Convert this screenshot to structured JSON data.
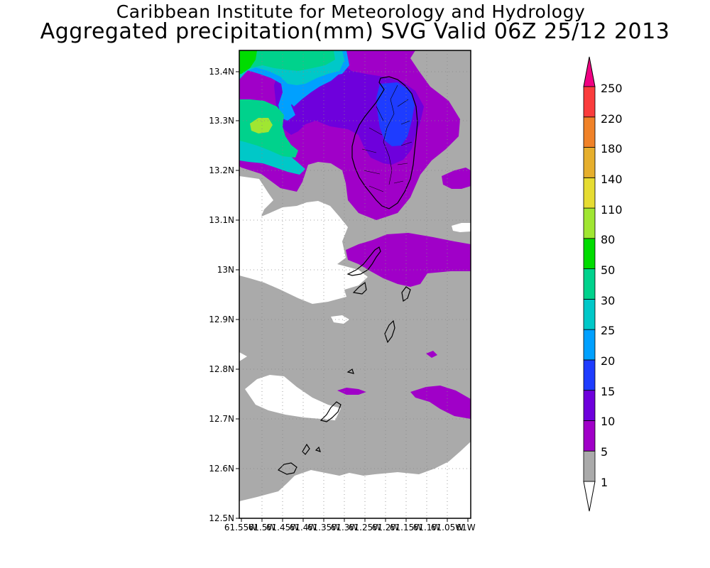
{
  "header": {
    "title": "Caribbean Institute for Meteorology and Hydrology",
    "subtitle": "Aggregated precipitation(mm) SVG Valid 06Z 25/12 2013"
  },
  "map": {
    "lat_labels": [
      "13.4N",
      "13.3N",
      "13.2N",
      "13.1N",
      "13N",
      "12.9N",
      "12.8N",
      "12.7N",
      "12.6N",
      "12.5N"
    ],
    "lon_labels": [
      "61.55W",
      "61.5W",
      "61.45W",
      "61.4W",
      "61.35W",
      "61.3W",
      "61.25W",
      "61.2W",
      "61.15W",
      "61.1W",
      "61.05W",
      "61W"
    ],
    "background_color": "#aaaaaa"
  },
  "legend": {
    "levels": [
      "1",
      "5",
      "10",
      "15",
      "20",
      "25",
      "30",
      "50",
      "80",
      "110",
      "140",
      "180",
      "220",
      "250"
    ],
    "colors": [
      "#ffffff",
      "#aaaaaa",
      "#a000c8",
      "#6e00dc",
      "#1e3cff",
      "#00a0ff",
      "#00c8c8",
      "#00d28c",
      "#00dc00",
      "#a0e632",
      "#e6dc32",
      "#e6af2d",
      "#f08228",
      "#fa3c3c",
      "#f00082"
    ]
  }
}
